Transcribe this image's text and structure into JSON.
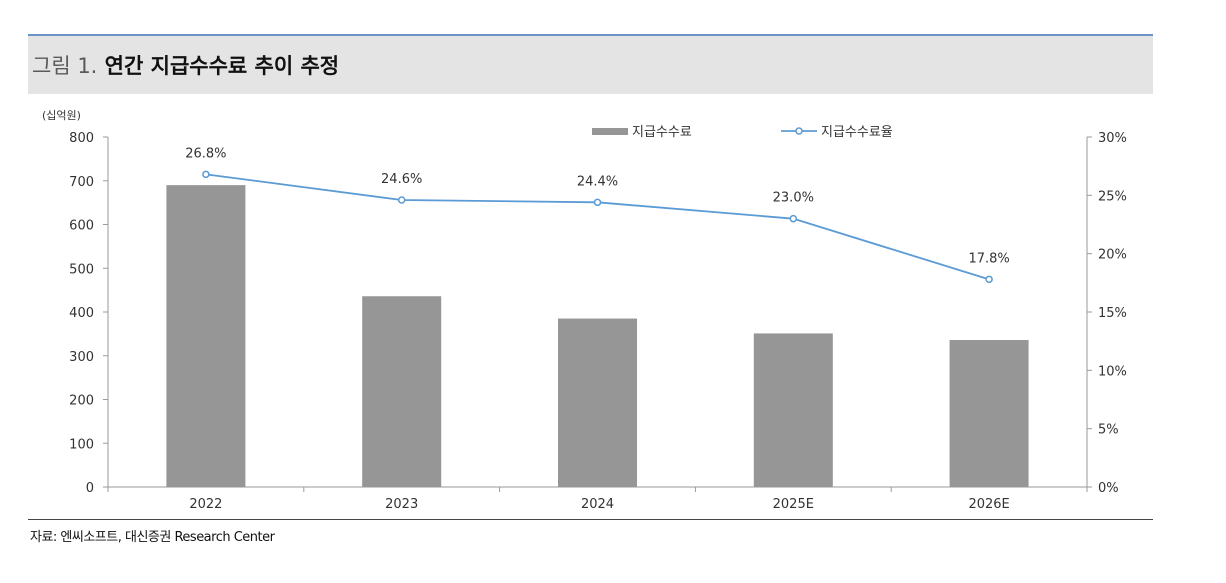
{
  "figure": {
    "number": "그림 1.",
    "title": "연간 지급수수료 추이 추정",
    "unit": "(십억원)",
    "source": "자료: 엔씨소프트, 대신증권 Research Center"
  },
  "chart_data": {
    "type": "bar",
    "categories": [
      "2022",
      "2023",
      "2024",
      "2025E",
      "2026E"
    ],
    "series": [
      {
        "name": "지급수수료",
        "type": "bar",
        "axis": "left",
        "values": [
          690,
          436,
          385,
          351,
          336
        ],
        "color": "#969696"
      },
      {
        "name": "지급수수료율",
        "type": "line",
        "axis": "right",
        "values": [
          26.8,
          24.6,
          24.4,
          23.0,
          17.8
        ],
        "labels": [
          "26.8%",
          "24.6%",
          "24.4%",
          "23.0%",
          "17.8%"
        ],
        "color": "#5b9bd5"
      }
    ],
    "ylim_left": [
      0,
      800
    ],
    "yticks_left": [
      "0",
      "100",
      "200",
      "300",
      "400",
      "500",
      "600",
      "700",
      "800"
    ],
    "ylim_right": [
      0,
      30
    ],
    "yticks_right": [
      "0%",
      "5%",
      "10%",
      "15%",
      "20%",
      "25%",
      "30%"
    ],
    "legend_position": "top",
    "grid": false
  }
}
